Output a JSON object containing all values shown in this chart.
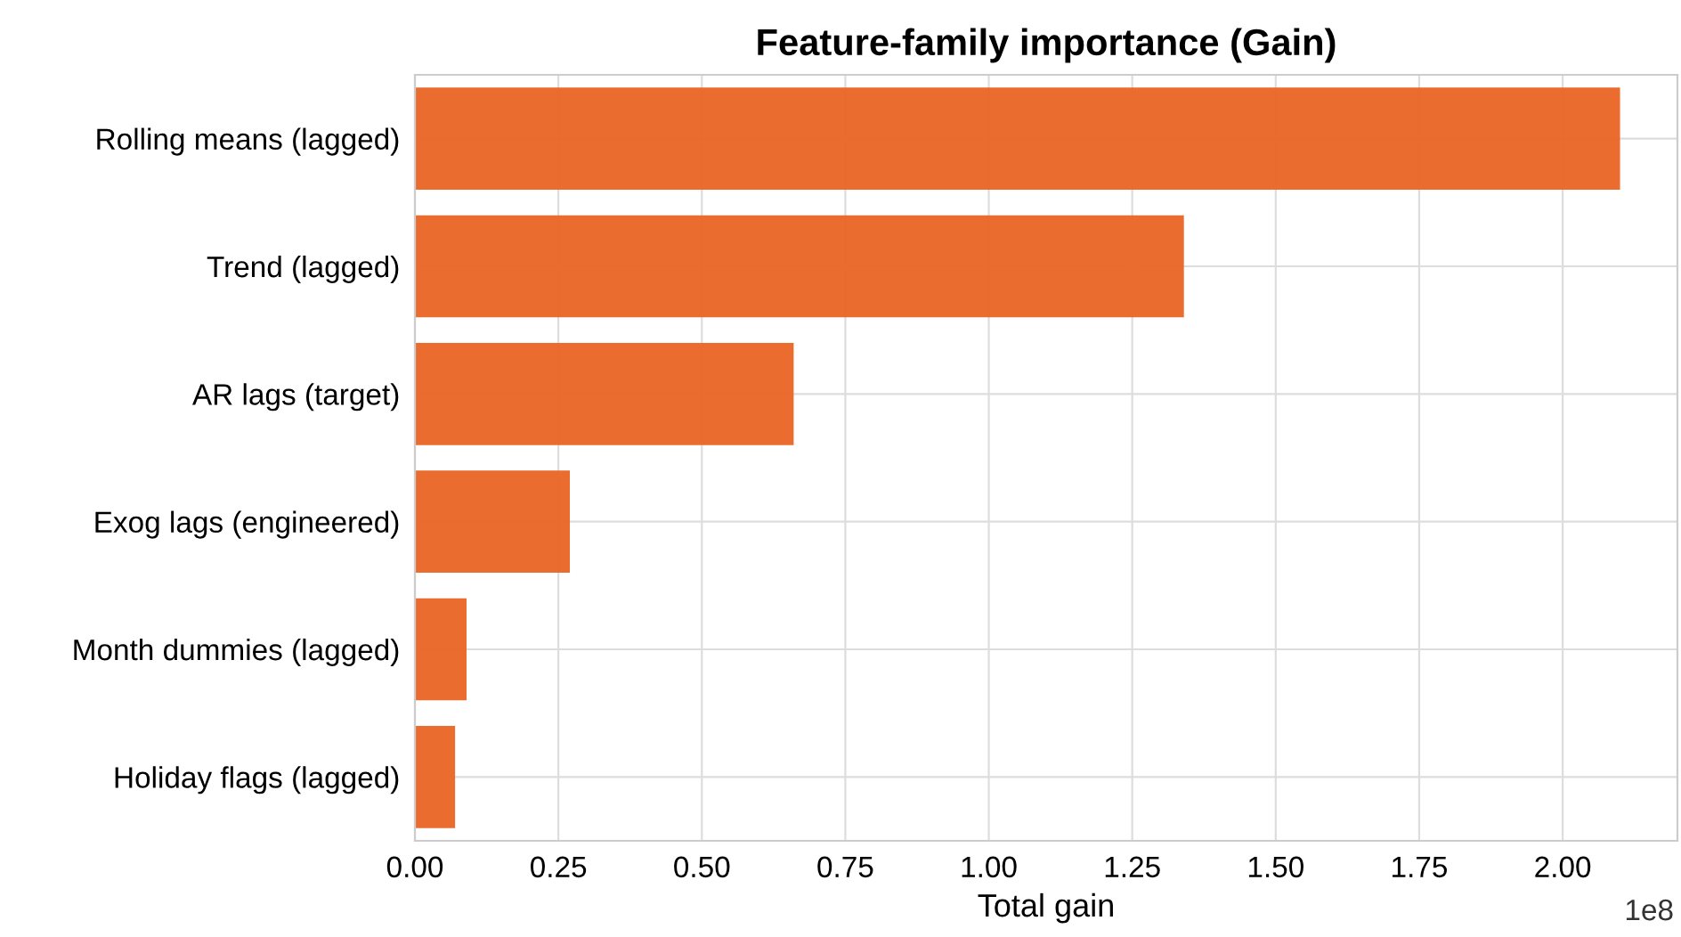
{
  "chart_data": {
    "type": "bar",
    "orientation": "horizontal",
    "title": "Feature-family importance (Gain)",
    "xlabel": "Total gain",
    "categories": [
      "Rolling means (lagged)",
      "Trend (lagged)",
      "AR lags (target)",
      "Exog lags (engineered)",
      "Month dummies (lagged)",
      "Holiday flags (lagged)"
    ],
    "values": [
      2.1,
      1.34,
      0.66,
      0.27,
      0.09,
      0.07
    ],
    "color": "#ea6424",
    "xlim": [
      0,
      2.2
    ],
    "xticks": [
      {
        "value": 0,
        "label": "0.00"
      },
      {
        "value": 0.25,
        "label": "0.25"
      },
      {
        "value": 0.5,
        "label": "0.50"
      },
      {
        "value": 0.75,
        "label": "0.75"
      },
      {
        "value": 1,
        "label": "1.00"
      },
      {
        "value": 1.25,
        "label": "1.25"
      },
      {
        "value": 1.5,
        "label": "1.50"
      },
      {
        "value": 1.75,
        "label": "1.75"
      },
      {
        "value": 2,
        "label": "2.00"
      }
    ],
    "annotations": [
      "1e8"
    ],
    "grid": true
  }
}
